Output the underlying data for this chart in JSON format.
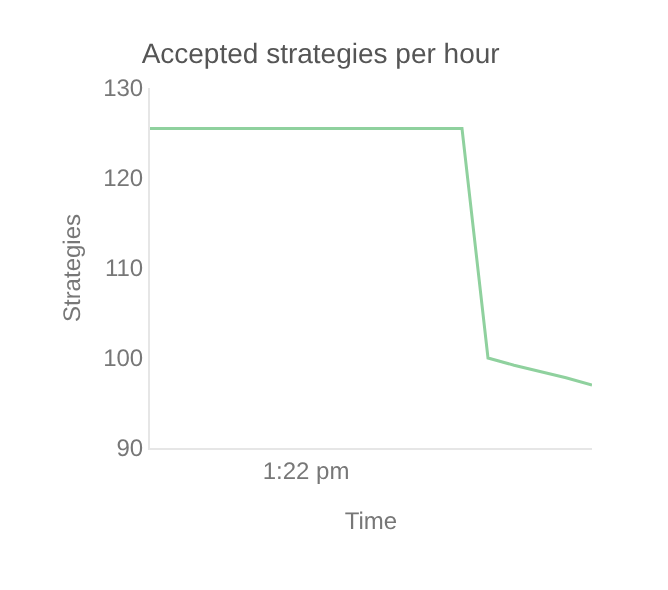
{
  "chart_data": {
    "type": "line",
    "title": "Accepted strategies per hour",
    "xlabel": "Time",
    "ylabel": "Strategies",
    "categories": [
      null,
      null,
      null,
      null,
      null,
      null,
      "1:22 pm",
      null,
      null,
      null,
      null,
      null,
      null,
      null,
      null,
      null,
      null,
      null
    ],
    "series": [
      {
        "color": "#8fd19e",
        "values": [
          125.5,
          125.5,
          125.5,
          125.5,
          125.5,
          125.5,
          125.5,
          125.5,
          125.5,
          125.5,
          125.5,
          125.5,
          125.5,
          100,
          99.2,
          98.5,
          97.8,
          97
        ]
      }
    ],
    "ylim": [
      90,
      130
    ],
    "yticks": [
      90,
      100,
      110,
      120,
      130
    ],
    "marker": "none",
    "line_style": "solid"
  }
}
